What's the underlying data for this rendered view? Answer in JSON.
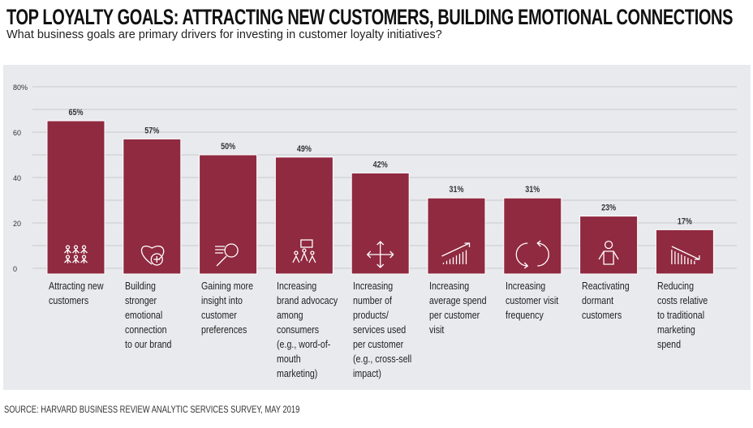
{
  "title": "TOP LOYALTY GOALS:  ATTRACTING NEW CUSTOMERS, BUILDING EMOTIONAL CONNECTIONS",
  "subtitle": "What business goals are primary drivers for investing in customer loyalty initiatives?",
  "source": "SOURCE: HARVARD BUSINESS REVIEW ANALYTIC SERVICES SURVEY, MAY 2019",
  "chart_data": {
    "type": "bar",
    "categories": [
      "Attracting new\ncustomers",
      "Building\nstronger\nemotional\nconnection\nto our brand",
      "Gaining more\ninsight into\ncustomer\npreferences",
      "Increasing\nbrand advocacy\namong\nconsumers\n(e.g., word-of-\nmouth\nmarketing)",
      "Increasing\nnumber of\nproducts/\nservices used\nper customer\n(e.g., cross-sell\nimpact)",
      "Increasing\naverage spend\nper customer\nvisit",
      "Increasing\ncustomer visit\nfrequency",
      "Reactivating\ndormant\ncustomers",
      "Reducing\ncosts relative\nto traditional\nmarketing\nspend"
    ],
    "values": [
      65,
      57,
      50,
      49,
      42,
      31,
      31,
      23,
      17
    ],
    "data_labels": [
      "65%",
      "57%",
      "50%",
      "49%",
      "42%",
      "31%",
      "31%",
      "23%",
      "17%"
    ],
    "icons": [
      "people-group-icon",
      "heart-plus-icon",
      "magnifier-insight-icon",
      "people-speech-icon",
      "four-arrows-icon",
      "rising-bars-icon",
      "cycle-arrows-icon",
      "person-icon",
      "falling-bars-icon"
    ],
    "ylim": [
      0,
      80
    ],
    "yticks": [
      "0",
      "20",
      "40",
      "60",
      "80%"
    ],
    "ytick_values": [
      0,
      20,
      40,
      60,
      80
    ],
    "grid": true,
    "bar_color": "#8f2a40",
    "background_color": "#e9eaee"
  }
}
